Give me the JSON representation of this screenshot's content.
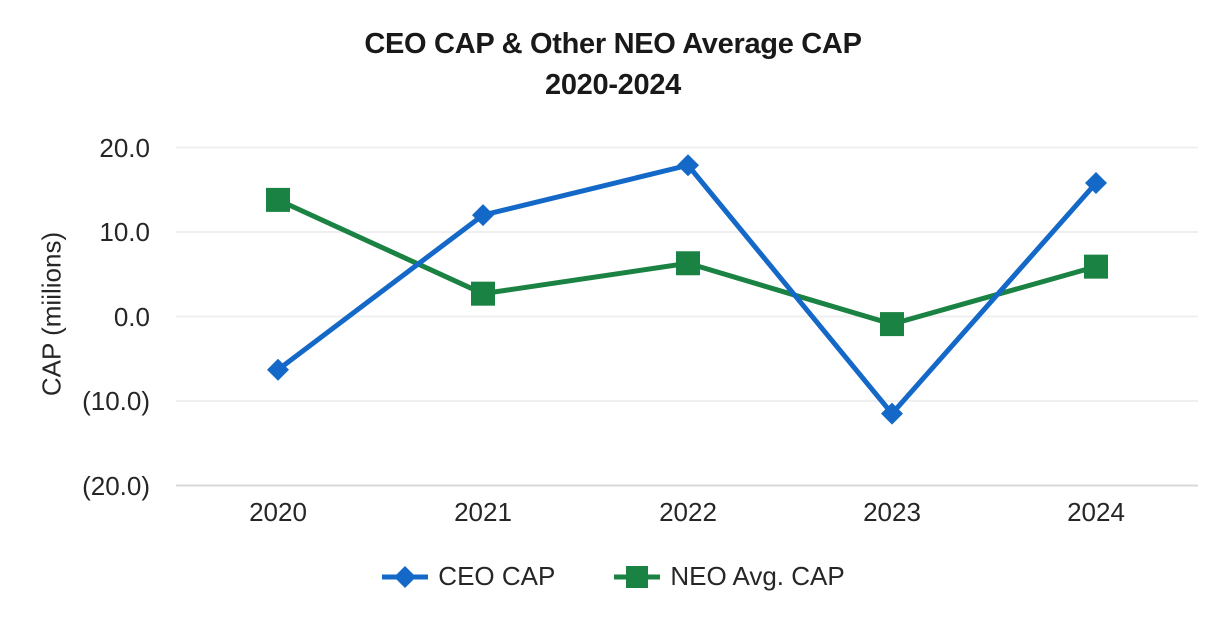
{
  "title": {
    "line1": "CEO CAP & Other NEO Average CAP",
    "line2": "2020-2024"
  },
  "chart_data": {
    "type": "line",
    "title": "CEO CAP & Other NEO Average CAP",
    "subtitle": "2020-2024",
    "categories": [
      "2020",
      "2021",
      "2022",
      "2023",
      "2024"
    ],
    "series": [
      {
        "name": "CEO CAP",
        "marker": "diamond",
        "color": "#1469C8",
        "values": [
          -6.3,
          12.0,
          17.9,
          -11.5,
          15.8
        ]
      },
      {
        "name": "NEO Avg. CAP",
        "marker": "square",
        "color": "#1A8242",
        "values": [
          13.8,
          2.7,
          6.3,
          -0.9,
          5.9
        ]
      }
    ],
    "xlabel": "",
    "ylabel": "CAP (miilions)",
    "ylim": [
      -20,
      20
    ],
    "y_ticks": [
      20,
      10,
      0,
      -10,
      -20
    ],
    "y_tick_labels": [
      "20.0",
      "10.0",
      "0.0",
      "(10.0)",
      "(20.0)"
    ],
    "grid": true,
    "gridline_color": "#efefef",
    "axis_line_color": "#d9d9d9",
    "background": "#ffffff",
    "legend_position": "bottom-center"
  }
}
